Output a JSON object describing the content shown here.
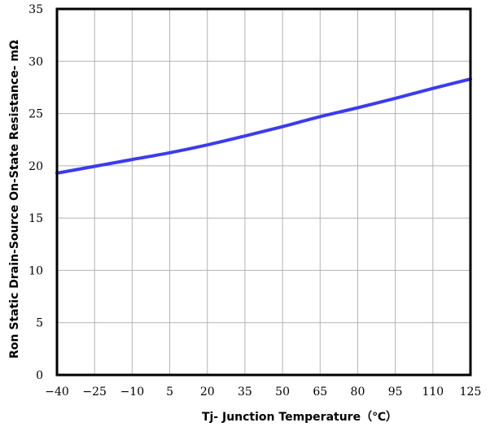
{
  "chart_data": {
    "type": "line",
    "title": "",
    "xlabel": "Tj- Junction Temperature（℃）",
    "ylabel": "Ron Static Drain-Source On-State Resistance- mΩ",
    "xlim": [
      -40,
      125
    ],
    "ylim": [
      0,
      35
    ],
    "x_ticks": [
      "−40",
      "−25",
      "−10",
      "5",
      "20",
      "35",
      "50",
      "65",
      "80",
      "95",
      "110",
      "125"
    ],
    "y_ticks": [
      "0",
      "5",
      "10",
      "15",
      "20",
      "25",
      "30",
      "35"
    ],
    "grid": true,
    "legend": "none",
    "series_color": "#3b3bf0",
    "series": [
      {
        "x": [
          -40,
          -25,
          -10,
          5,
          20,
          35,
          50,
          65,
          80,
          95,
          110,
          125
        ],
        "y": [
          19.3,
          19.95,
          20.6,
          21.25,
          22.0,
          22.85,
          23.75,
          24.7,
          25.55,
          26.45,
          27.4,
          28.3
        ]
      }
    ]
  }
}
